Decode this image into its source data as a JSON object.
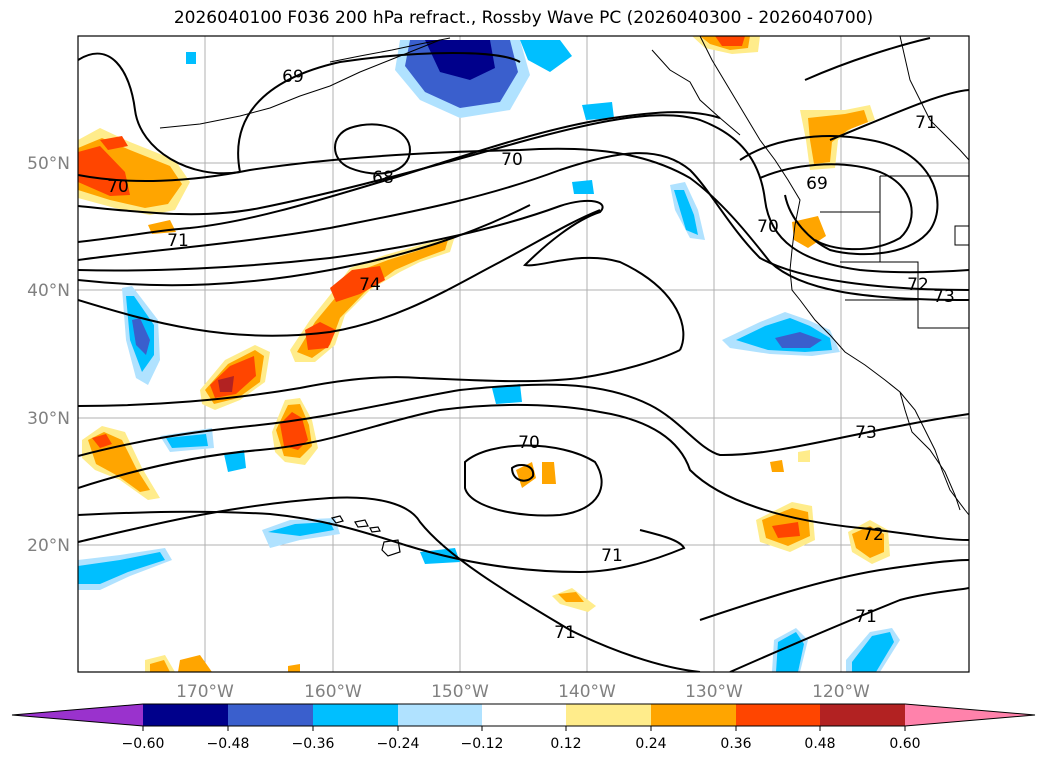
{
  "title": "2026040100 F036 200 hPa refract., Rossby Wave PC (2026040300 - 2026040700)",
  "lat_labels": [
    "50°N",
    "40°N",
    "30°N",
    "20°N"
  ],
  "lon_labels": [
    "170°W",
    "160°W",
    "150°W",
    "140°W",
    "130°W",
    "120°W"
  ],
  "contour_labels": [
    "69",
    "68",
    "70",
    "70",
    "71",
    "74",
    "69",
    "70",
    "71",
    "72",
    "73",
    "70",
    "71",
    "73",
    "72",
    "71",
    "71"
  ],
  "colorbar": {
    "ticks": [
      "−0.60",
      "−0.48",
      "−0.36",
      "−0.24",
      "−0.12",
      "0.12",
      "0.24",
      "0.36",
      "0.48",
      "0.60"
    ],
    "colors": [
      "#9a32cd",
      "#00008b",
      "#3a5fcd",
      "#00bfff",
      "#b0e2ff",
      "#ffffff",
      "#ffec8b",
      "#ffa500",
      "#ff4500",
      "#b22222",
      "#ff82ab"
    ]
  },
  "chart_data": {
    "type": "map",
    "title": "2026040100 F036 200 hPa refract., Rossby Wave PC (2026040300 - 2026040700)",
    "region": {
      "lon_range": [
        -180,
        -110
      ],
      "lat_range": [
        10,
        60
      ]
    },
    "gridlines": true,
    "contour_levels": [
      68,
      69,
      70,
      71,
      72,
      73,
      74
    ],
    "fill_levels": [
      -0.6,
      -0.48,
      -0.36,
      -0.24,
      -0.12,
      0.12,
      0.24,
      0.36,
      0.48,
      0.6
    ],
    "colorbar_extend": "both"
  }
}
